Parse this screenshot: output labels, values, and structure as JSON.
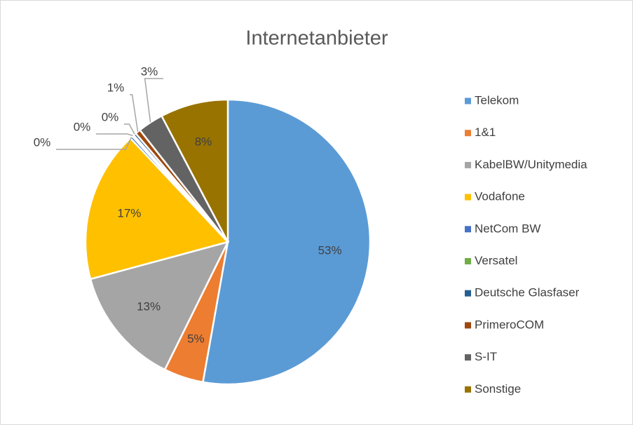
{
  "chart_data": {
    "type": "pie",
    "title": "Internetanbieter",
    "categories": [
      "Telekom",
      "1&1",
      "KabelBW/Unitymedia",
      "Vodafone",
      "NetCom BW",
      "Versatel",
      "Deutsche Glasfaser",
      "PrimeroCOM",
      "S-IT",
      "Sonstige"
    ],
    "values": [
      52.8,
      4.5,
      13.5,
      17.2,
      0.3,
      0.2,
      0.3,
      0.6,
      2.9,
      7.7
    ],
    "value_labels": [
      "53%",
      "5%",
      "13%",
      "17%",
      "0%",
      "0%",
      "0%",
      "1%",
      "3%",
      "8%"
    ],
    "colors": [
      "#5b9bd5",
      "#ed7d31",
      "#a5a5a5",
      "#ffc000",
      "#4472c4",
      "#70ad47",
      "#255e91",
      "#9e480e",
      "#636363",
      "#997300"
    ],
    "legend": "right"
  }
}
